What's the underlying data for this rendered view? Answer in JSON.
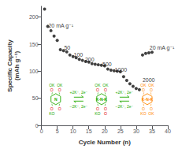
{
  "chart_data": {
    "type": "scatter",
    "xlabel": "Cycle Number (n)",
    "ylabel": "Specific Capacity\n(mAh g⁻¹)",
    "x": [
      1,
      2,
      3,
      4,
      5,
      6,
      7,
      8,
      9,
      10,
      11,
      12,
      13,
      14,
      15,
      16,
      17,
      18,
      19,
      20,
      21,
      22,
      23,
      24,
      25,
      26,
      27,
      28,
      29,
      30,
      31,
      32,
      33,
      34,
      35
    ],
    "values": [
      215,
      183,
      175,
      165,
      157,
      140,
      138,
      136,
      130,
      127,
      125,
      122,
      120,
      118,
      117,
      114,
      113,
      112,
      111,
      110,
      104,
      102,
      101,
      100,
      99,
      90,
      83,
      77,
      72,
      68,
      66,
      130,
      133,
      134,
      135
    ],
    "color": "#111111",
    "xlim": [
      0,
      40
    ],
    "xticks": [
      0,
      5,
      10,
      15,
      20,
      25,
      30,
      35,
      40
    ],
    "ylim": [
      0,
      220
    ],
    "yticks": [
      0,
      50,
      100,
      150,
      200
    ],
    "grid": false,
    "annotations": [
      {
        "text": "20 mA g⁻¹",
        "x": 2.2,
        "y": 184
      },
      {
        "text": "50",
        "x": 7.2,
        "y": 144
      },
      {
        "text": "100",
        "x": 10.2,
        "y": 130
      },
      {
        "text": "200",
        "x": 13.8,
        "y": 121
      },
      {
        "text": "500",
        "x": 19.3,
        "y": 113
      },
      {
        "text": "1000",
        "x": 23.2,
        "y": 103
      },
      {
        "text": "2000",
        "x": 32.0,
        "y": 84
      },
      {
        "text": "20 mA g⁻¹",
        "x": 34.2,
        "y": 143
      }
    ],
    "inset": [
      {
        "kind": "molecule",
        "center": "N",
        "color": "#22aa00",
        "groups": [
          [
            {
              "text": "O",
              "color": "#dd0000"
            },
            {
              "text": "OK",
              "color": "#22aa00"
            }
          ],
          [
            {
              "text": "O",
              "color": "#dd0000"
            },
            {
              "text": "OK",
              "color": "#22aa00"
            }
          ],
          [
            {
              "text": "O",
              "color": "#dd0000"
            },
            {
              "text": "KO",
              "color": "#22aa00"
            }
          ],
          [
            {
              "text": "O",
              "color": "#dd0000"
            }
          ]
        ]
      },
      {
        "kind": "arrows",
        "color": "#22aa00",
        "texts": [
          "+2K⁺, 2e⁻",
          "−2K⁺, 2e⁻"
        ]
      },
      {
        "kind": "molecule",
        "center": "K-N-K",
        "color": "#22aa00",
        "groups": [
          [
            {
              "text": "O",
              "color": "#dd0000"
            },
            {
              "text": "OK",
              "color": "#22aa00"
            }
          ],
          [
            {
              "text": "O",
              "color": "#dd0000"
            },
            {
              "text": "OK",
              "color": "#22aa00"
            }
          ],
          [
            {
              "text": "O",
              "color": "#dd0000"
            },
            {
              "text": "KO",
              "color": "#22aa00"
            }
          ],
          [
            {
              "text": "O",
              "color": "#dd0000"
            },
            {
              "text": "O",
              "color": "#dd0000"
            }
          ]
        ]
      },
      {
        "kind": "arrows",
        "color": "#22aa00",
        "texts": [
          "+2K⁺, 2e⁻",
          "−2K⁺, 2e⁻"
        ]
      },
      {
        "kind": "molecule",
        "center": "K-N-K",
        "color": "#ff8800",
        "groups": [
          [
            {
              "text": "O",
              "color": "#ff8800"
            },
            {
              "text": "OK",
              "color": "#ff8800"
            }
          ],
          [
            {
              "text": "O",
              "color": "#ff8800"
            },
            {
              "text": "OK",
              "color": "#ff8800"
            }
          ],
          [
            {
              "text": "O",
              "color": "#ff8800"
            },
            {
              "text": "KO",
              "color": "#ff8800"
            }
          ],
          [
            {
              "text": "O",
              "color": "#ff8800"
            },
            {
              "text": "OK",
              "color": "#ff8800"
            }
          ]
        ]
      }
    ]
  }
}
